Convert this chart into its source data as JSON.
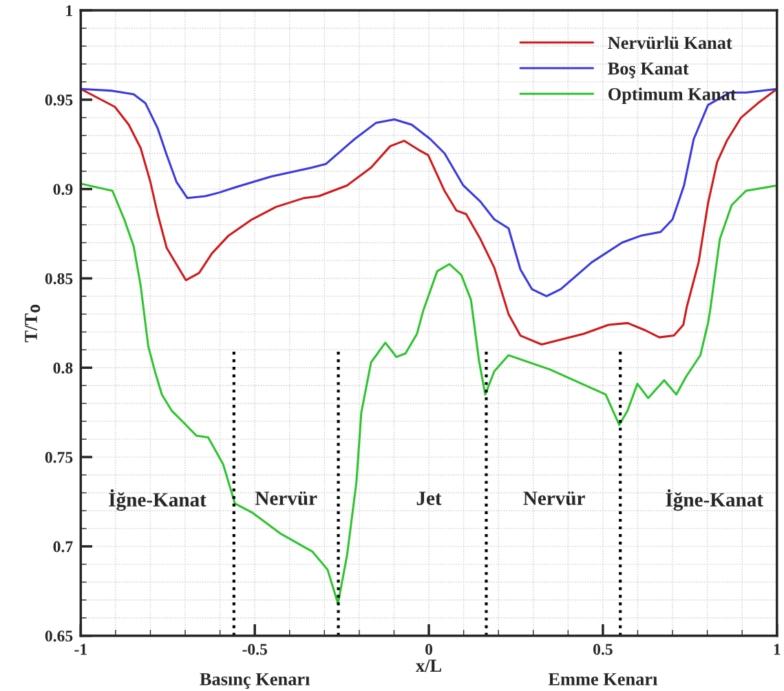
{
  "chart_data": {
    "type": "line",
    "xlabel": "x/L",
    "ylabel": "T/T$_{0}$",
    "xlim": [
      -1,
      1
    ],
    "ylim": [
      0.65,
      1
    ],
    "xticks": [
      -1,
      -0.5,
      0,
      0.5,
      1
    ],
    "yticks": [
      0.65,
      0.7,
      0.75,
      0.8,
      0.85,
      0.9,
      0.95,
      1
    ],
    "grid": true,
    "legend": "top right",
    "line_style": "solid",
    "series": [
      {
        "name": "Nervürlü Kanat",
        "color": "#d01a1a",
        "x": [
          -1,
          -0.902,
          -0.862,
          -0.828,
          -0.8,
          -0.779,
          -0.753,
          -0.698,
          -0.66,
          -0.623,
          -0.575,
          -0.508,
          -0.439,
          -0.358,
          -0.316,
          -0.235,
          -0.166,
          -0.111,
          -0.071,
          -0.03,
          -0.002,
          0.045,
          0.079,
          0.107,
          0.148,
          0.188,
          0.229,
          0.263,
          0.324,
          0.445,
          0.516,
          0.571,
          0.621,
          0.662,
          0.704,
          0.731,
          0.741,
          0.775,
          0.802,
          0.828,
          0.856,
          0.897,
          0.945,
          1
        ],
        "values": [
          0.956,
          0.946,
          0.936,
          0.923,
          0.904,
          0.886,
          0.867,
          0.849,
          0.853,
          0.864,
          0.874,
          0.883,
          0.89,
          0.895,
          0.896,
          0.902,
          0.912,
          0.924,
          0.927,
          0.922,
          0.919,
          0.899,
          0.888,
          0.886,
          0.872,
          0.856,
          0.83,
          0.818,
          0.813,
          0.819,
          0.824,
          0.825,
          0.821,
          0.817,
          0.818,
          0.824,
          0.834,
          0.859,
          0.892,
          0.915,
          0.927,
          0.94,
          0.948,
          0.956
        ]
      },
      {
        "name": "Boş Kanat",
        "color": "#3a3ae0",
        "x": [
          -1,
          -0.909,
          -0.848,
          -0.814,
          -0.779,
          -0.753,
          -0.725,
          -0.694,
          -0.642,
          -0.603,
          -0.555,
          -0.453,
          -0.336,
          -0.296,
          -0.213,
          -0.152,
          -0.099,
          -0.049,
          0.004,
          0.045,
          0.099,
          0.148,
          0.188,
          0.229,
          0.263,
          0.296,
          0.338,
          0.379,
          0.468,
          0.555,
          0.611,
          0.666,
          0.7,
          0.733,
          0.761,
          0.802,
          0.864,
          0.911,
          1
        ],
        "values": [
          0.956,
          0.955,
          0.953,
          0.948,
          0.934,
          0.919,
          0.904,
          0.895,
          0.896,
          0.898,
          0.901,
          0.907,
          0.912,
          0.914,
          0.928,
          0.937,
          0.939,
          0.936,
          0.928,
          0.92,
          0.902,
          0.893,
          0.883,
          0.878,
          0.855,
          0.844,
          0.84,
          0.844,
          0.859,
          0.87,
          0.874,
          0.876,
          0.883,
          0.902,
          0.928,
          0.947,
          0.954,
          0.954,
          0.956
        ]
      },
      {
        "name": "Optimum Kanat",
        "color": "#2ec42e",
        "x": [
          -1,
          -0.909,
          -0.875,
          -0.848,
          -0.828,
          -0.806,
          -0.787,
          -0.767,
          -0.739,
          -0.703,
          -0.668,
          -0.634,
          -0.591,
          -0.557,
          -0.508,
          -0.425,
          -0.334,
          -0.291,
          -0.261,
          -0.235,
          -0.208,
          -0.194,
          -0.166,
          -0.125,
          -0.093,
          -0.067,
          -0.034,
          -0.016,
          0.024,
          0.059,
          0.093,
          0.121,
          0.144,
          0.162,
          0.188,
          0.229,
          0.348,
          0.508,
          0.547,
          0.571,
          0.599,
          0.63,
          0.676,
          0.711,
          0.739,
          0.78,
          0.802,
          0.808,
          0.836,
          0.87,
          0.911,
          1
        ],
        "values": [
          0.903,
          0.899,
          0.883,
          0.868,
          0.846,
          0.812,
          0.798,
          0.785,
          0.776,
          0.769,
          0.762,
          0.761,
          0.746,
          0.724,
          0.719,
          0.707,
          0.697,
          0.687,
          0.668,
          0.695,
          0.736,
          0.775,
          0.803,
          0.814,
          0.806,
          0.808,
          0.819,
          0.832,
          0.854,
          0.858,
          0.852,
          0.838,
          0.804,
          0.785,
          0.798,
          0.807,
          0.799,
          0.785,
          0.768,
          0.776,
          0.791,
          0.783,
          0.793,
          0.785,
          0.795,
          0.807,
          0.825,
          0.832,
          0.872,
          0.891,
          0.899,
          0.902
        ]
      }
    ],
    "ref_lines": [
      {
        "axis": "x",
        "value": -0.56,
        "color": "#000000",
        "line_style": "dotted"
      },
      {
        "axis": "x",
        "value": -0.26,
        "color": "#000000",
        "line_style": "dotted"
      },
      {
        "axis": "x",
        "value": 0.165,
        "color": "#000000",
        "line_style": "dotted"
      },
      {
        "axis": "x",
        "value": 0.55,
        "color": "#000000",
        "line_style": "dotted"
      }
    ],
    "annotations": [
      "İğne-Kanat",
      "Nervür",
      "Jet",
      "Nervür",
      "İğne-Kanat",
      "Basınç Kenarı",
      "Emme Kenarı"
    ]
  }
}
